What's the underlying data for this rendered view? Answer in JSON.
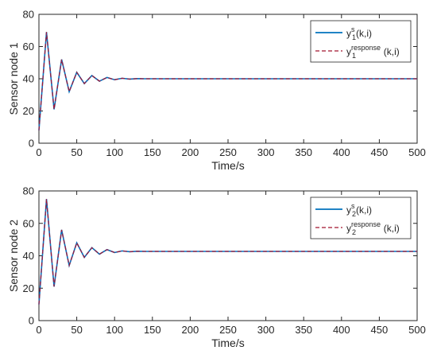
{
  "colors": {
    "axes": "#262626",
    "plot_bg": "#ffffff",
    "series_blue": "#0072BD",
    "series_red": "#A2142F",
    "series_overlay_magenta": "#7E2F8E"
  },
  "chart_data": [
    {
      "type": "line",
      "panel": "top",
      "title": "",
      "xlabel": "Time/s",
      "ylabel": "Sensor node 1",
      "xlim": [
        0,
        500
      ],
      "ylim": [
        0,
        80
      ],
      "xticks": [
        0,
        50,
        100,
        150,
        200,
        250,
        300,
        350,
        400,
        450,
        500
      ],
      "yticks": [
        0,
        20,
        40,
        60,
        80
      ],
      "grid": false,
      "legend_position": "top-right",
      "legend": [
        {
          "base": "y",
          "sub": "1",
          "sup": "s",
          "args": "(k,i)",
          "style": "solid",
          "color_key": "series_blue"
        },
        {
          "base": "y",
          "sub": "1",
          "sup": "response",
          "args": "(k,i)",
          "style": "dashed",
          "color_key": "series_red"
        }
      ],
      "series": [
        {
          "style": "solid",
          "color_key": "series_blue",
          "x": [
            0,
            10,
            20,
            30,
            40,
            50,
            60,
            70,
            80,
            90,
            100,
            110,
            120,
            130,
            140,
            150,
            500
          ],
          "y": [
            8,
            69,
            21,
            52,
            32,
            44,
            37,
            42,
            38.5,
            40.8,
            39.4,
            40.3,
            39.8,
            40.1,
            40,
            40,
            40
          ]
        },
        {
          "style": "dashed",
          "color_key": "series_red",
          "x": [
            0,
            10,
            20,
            30,
            40,
            50,
            60,
            70,
            80,
            90,
            100,
            110,
            120,
            130,
            140,
            150,
            500
          ],
          "y": [
            8,
            69,
            21,
            52,
            32,
            44,
            37,
            42,
            38.5,
            40.8,
            39.4,
            40.3,
            39.8,
            40.1,
            40,
            40,
            40
          ]
        }
      ]
    },
    {
      "type": "line",
      "panel": "bottom",
      "title": "",
      "xlabel": "Time/s",
      "ylabel": "Sensor node 2",
      "xlim": [
        0,
        500
      ],
      "ylim": [
        0,
        80
      ],
      "xticks": [
        0,
        50,
        100,
        150,
        200,
        250,
        300,
        350,
        400,
        450,
        500
      ],
      "yticks": [
        0,
        20,
        40,
        60,
        80
      ],
      "grid": false,
      "legend_position": "top-right",
      "legend": [
        {
          "base": "y",
          "sub": "2",
          "sup": "s",
          "args": "(k,i)",
          "style": "solid",
          "color_key": "series_blue"
        },
        {
          "base": "y",
          "sub": "2",
          "sup": "response",
          "args": "(k,i)",
          "style": "dashed",
          "color_key": "series_red"
        }
      ],
      "series": [
        {
          "style": "solid",
          "color_key": "series_blue",
          "x": [
            0,
            10,
            20,
            30,
            40,
            50,
            60,
            70,
            80,
            90,
            100,
            110,
            120,
            130,
            140,
            150,
            500
          ],
          "y": [
            10,
            75,
            21,
            56,
            34,
            48,
            39,
            45,
            41,
            43.8,
            42,
            43,
            42.5,
            42.8,
            42.7,
            42.7,
            42.7
          ]
        },
        {
          "style": "dashed",
          "color_key": "series_red",
          "x": [
            0,
            10,
            20,
            30,
            40,
            50,
            60,
            70,
            80,
            90,
            100,
            110,
            120,
            130,
            140,
            150,
            500
          ],
          "y": [
            10,
            75,
            21,
            56,
            34,
            48,
            39,
            45,
            41,
            43.8,
            42,
            43,
            42.5,
            42.8,
            42.7,
            42.7,
            42.7
          ]
        }
      ]
    }
  ]
}
